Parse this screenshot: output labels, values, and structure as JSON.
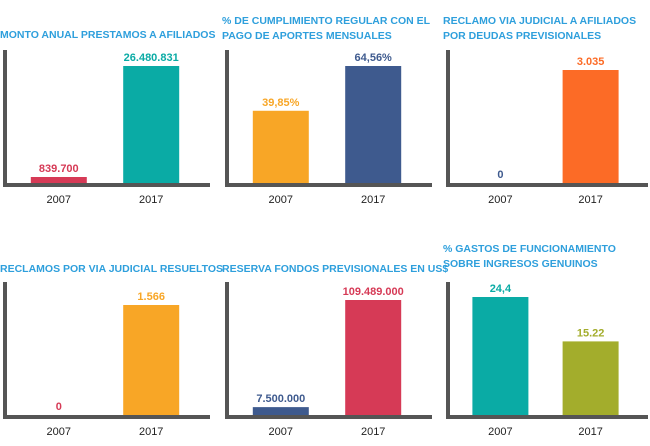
{
  "chart_data": [
    {
      "type": "bar",
      "title_lines": [
        "MONTO ANUAL PRESTAMOS A AFILIADOS"
      ],
      "categories": [
        "2007",
        "2017"
      ],
      "values": [
        839700,
        26480831
      ],
      "value_labels": [
        "839.700",
        "26.480.831"
      ],
      "colors": [
        "#d63a56",
        "#0aaba5"
      ],
      "ylim": [
        0,
        26480831
      ]
    },
    {
      "type": "bar",
      "title_lines": [
        "% DE CUMPLIMIENTO REGULAR CON EL",
        "PAGO DE  APORTES MENSUALES"
      ],
      "categories": [
        "2007",
        "2017"
      ],
      "values": [
        39.85,
        64.56
      ],
      "value_labels": [
        "39,85%",
        "64,56%"
      ],
      "colors": [
        "#f8a626",
        "#3e5a8e"
      ],
      "ylim": [
        0,
        64.56
      ]
    },
    {
      "type": "bar",
      "title_lines": [
        "RECLAMO VIA JUDICIAL A AFILIADOS",
        "POR DEUDAS PREVISIONALES"
      ],
      "categories": [
        "2007",
        "2017"
      ],
      "values": [
        0,
        3035
      ],
      "value_labels": [
        "0",
        "3.035"
      ],
      "colors": [
        "#3e5a8e",
        "#fc6b26"
      ],
      "ylim": [
        0,
        3035
      ]
    },
    {
      "type": "bar",
      "title_lines": [
        "RECLAMOS POR VIA JUDICIAL RESUELTOS"
      ],
      "categories": [
        "2007",
        "2017"
      ],
      "values": [
        0,
        1566
      ],
      "value_labels": [
        "0",
        "1.566"
      ],
      "colors": [
        "#d63a56",
        "#f8a626"
      ],
      "ylim": [
        0,
        1566
      ]
    },
    {
      "type": "bar",
      "title_lines": [
        "RESERVA FONDOS PREVISIONALES EN US$"
      ],
      "categories": [
        "2007",
        "2017"
      ],
      "values": [
        7500000,
        109489000
      ],
      "value_labels": [
        "7.500.000",
        "109.489.000"
      ],
      "colors": [
        "#3e5a8e",
        "#d63a56"
      ],
      "ylim": [
        0,
        109489000
      ]
    },
    {
      "type": "bar",
      "title_lines": [
        "% GASTOS DE FUNCIONAMIENTO",
        "SOBRE INGRESOS GENUINOS"
      ],
      "categories": [
        "2007",
        "2017"
      ],
      "values": [
        24.4,
        15.22
      ],
      "value_labels": [
        "24,4",
        "15.22"
      ],
      "colors": [
        "#0aaba5",
        "#a3ad2c"
      ],
      "ylim": [
        0,
        24.4
      ]
    }
  ]
}
